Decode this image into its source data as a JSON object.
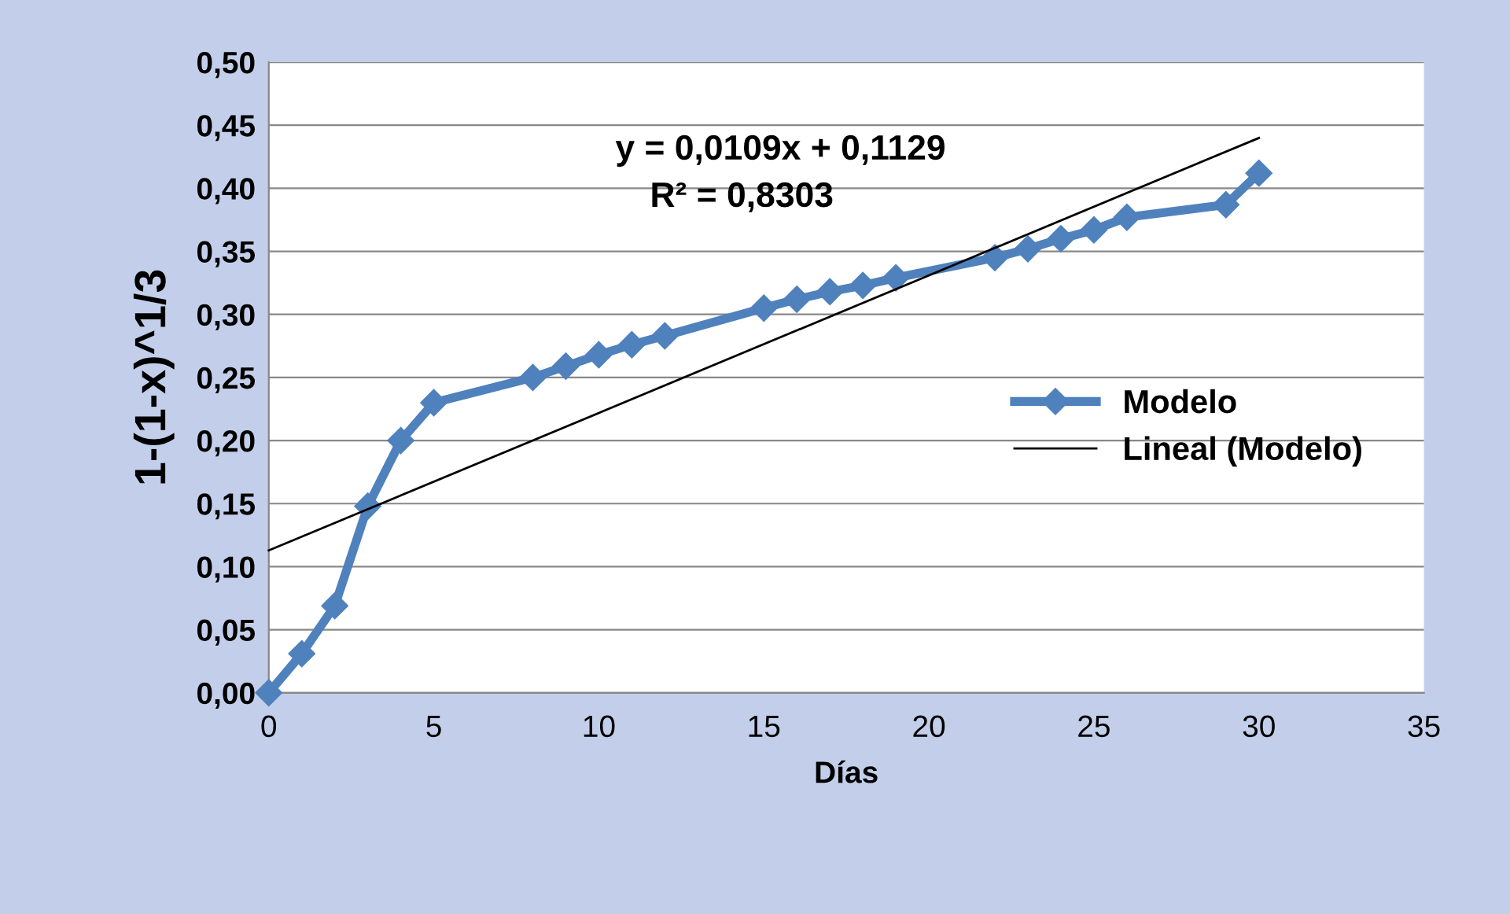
{
  "chart_data": {
    "type": "line",
    "xlabel": "Días",
    "ylabel": "1-(1-x)^1/3",
    "series": [
      {
        "name": "Modelo",
        "color": "#4f81bd",
        "marker": "diamond",
        "x": [
          0,
          1,
          2,
          3,
          4,
          5,
          8,
          9,
          10,
          11,
          12,
          15,
          16,
          17,
          18,
          19,
          22,
          23,
          24,
          25,
          26,
          29,
          30
        ],
        "values": [
          0.0,
          0.031,
          0.069,
          0.148,
          0.2,
          0.23,
          0.25,
          0.259,
          0.268,
          0.276,
          0.283,
          0.305,
          0.312,
          0.318,
          0.323,
          0.329,
          0.345,
          0.352,
          0.36,
          0.367,
          0.377,
          0.387,
          0.412
        ]
      },
      {
        "name": "Lineal (Modelo)",
        "color": "#000000",
        "marker": "none",
        "x": [
          0,
          30
        ],
        "values": [
          0.1129,
          0.4399
        ]
      }
    ],
    "annotations": [
      "y = 0,0109x + 0,1129",
      "R² = 0,8303"
    ],
    "xlim": [
      0,
      35
    ],
    "xticks": [
      0,
      5,
      10,
      15,
      20,
      25,
      30,
      35
    ],
    "ylim": [
      0,
      0.5
    ],
    "yticks": [
      {
        "value": 0,
        "label": "0,00"
      },
      {
        "value": 0.05,
        "label": "0,05"
      },
      {
        "value": 0.1,
        "label": "0,10"
      },
      {
        "value": 0.15,
        "label": "0,15"
      },
      {
        "value": 0.2,
        "label": "0,20"
      },
      {
        "value": 0.25,
        "label": "0,25"
      },
      {
        "value": 0.3,
        "label": "0,30"
      },
      {
        "value": 0.35,
        "label": "0,35"
      },
      {
        "value": 0.4,
        "label": "0,40"
      },
      {
        "value": 0.45,
        "label": "0,45"
      },
      {
        "value": 0.5,
        "label": "0,50"
      }
    ],
    "grid": "y",
    "legend": "right"
  }
}
